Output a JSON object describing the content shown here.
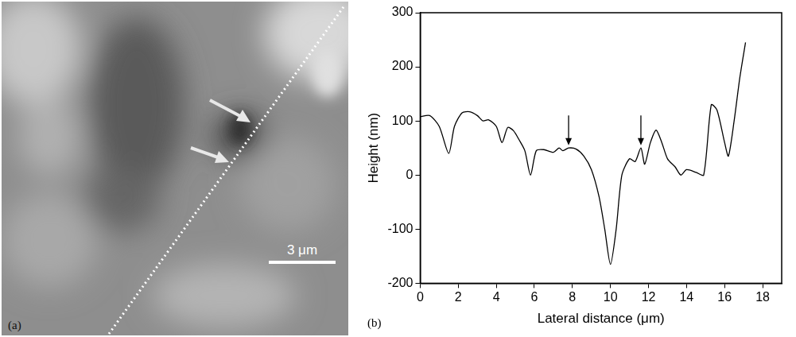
{
  "image": {
    "panel_label": "(a)",
    "scale_bar": "3 μm"
  },
  "chart_data": {
    "type": "line",
    "panel_label": "(b)",
    "x_label": "Lateral distance (μm)",
    "y_label": "Height (nm)",
    "x": [
      0,
      0.5,
      1.0,
      1.5,
      1.8,
      2.2,
      2.6,
      3.0,
      3.3,
      3.6,
      4.0,
      4.3,
      4.6,
      4.9,
      5.2,
      5.5,
      5.8,
      6.1,
      6.5,
      7.0,
      7.3,
      7.5,
      7.8,
      8.2,
      8.6,
      9.0,
      9.4,
      9.7,
      10.0,
      10.3,
      10.6,
      11.0,
      11.3,
      11.6,
      11.8,
      12.1,
      12.4,
      12.7,
      13.0,
      13.4,
      13.7,
      14.0,
      14.5,
      14.9,
      15.3,
      15.6,
      16.0,
      16.2,
      16.5,
      16.8,
      17.1
    ],
    "values": [
      108,
      110,
      90,
      40,
      90,
      115,
      117,
      110,
      100,
      102,
      90,
      60,
      88,
      82,
      65,
      45,
      0,
      45,
      47,
      42,
      50,
      45,
      50,
      48,
      35,
      10,
      -40,
      -100,
      -165,
      -100,
      0,
      30,
      25,
      50,
      20,
      60,
      83,
      60,
      30,
      15,
      0,
      10,
      5,
      0,
      130,
      120,
      60,
      35,
      100,
      180,
      245
    ],
    "color": "#000000",
    "xlim": [
      0,
      19
    ],
    "xticks": [
      0,
      2,
      4,
      6,
      8,
      10,
      12,
      14,
      16,
      18
    ],
    "ylim": [
      -200,
      300
    ],
    "yticks": [
      -200,
      -100,
      0,
      100,
      200,
      300
    ],
    "grid": false,
    "arrows": [
      {
        "x": 7.8,
        "y_from": 110,
        "y_to": 55
      },
      {
        "x": 11.6,
        "y_from": 110,
        "y_to": 55
      }
    ]
  }
}
